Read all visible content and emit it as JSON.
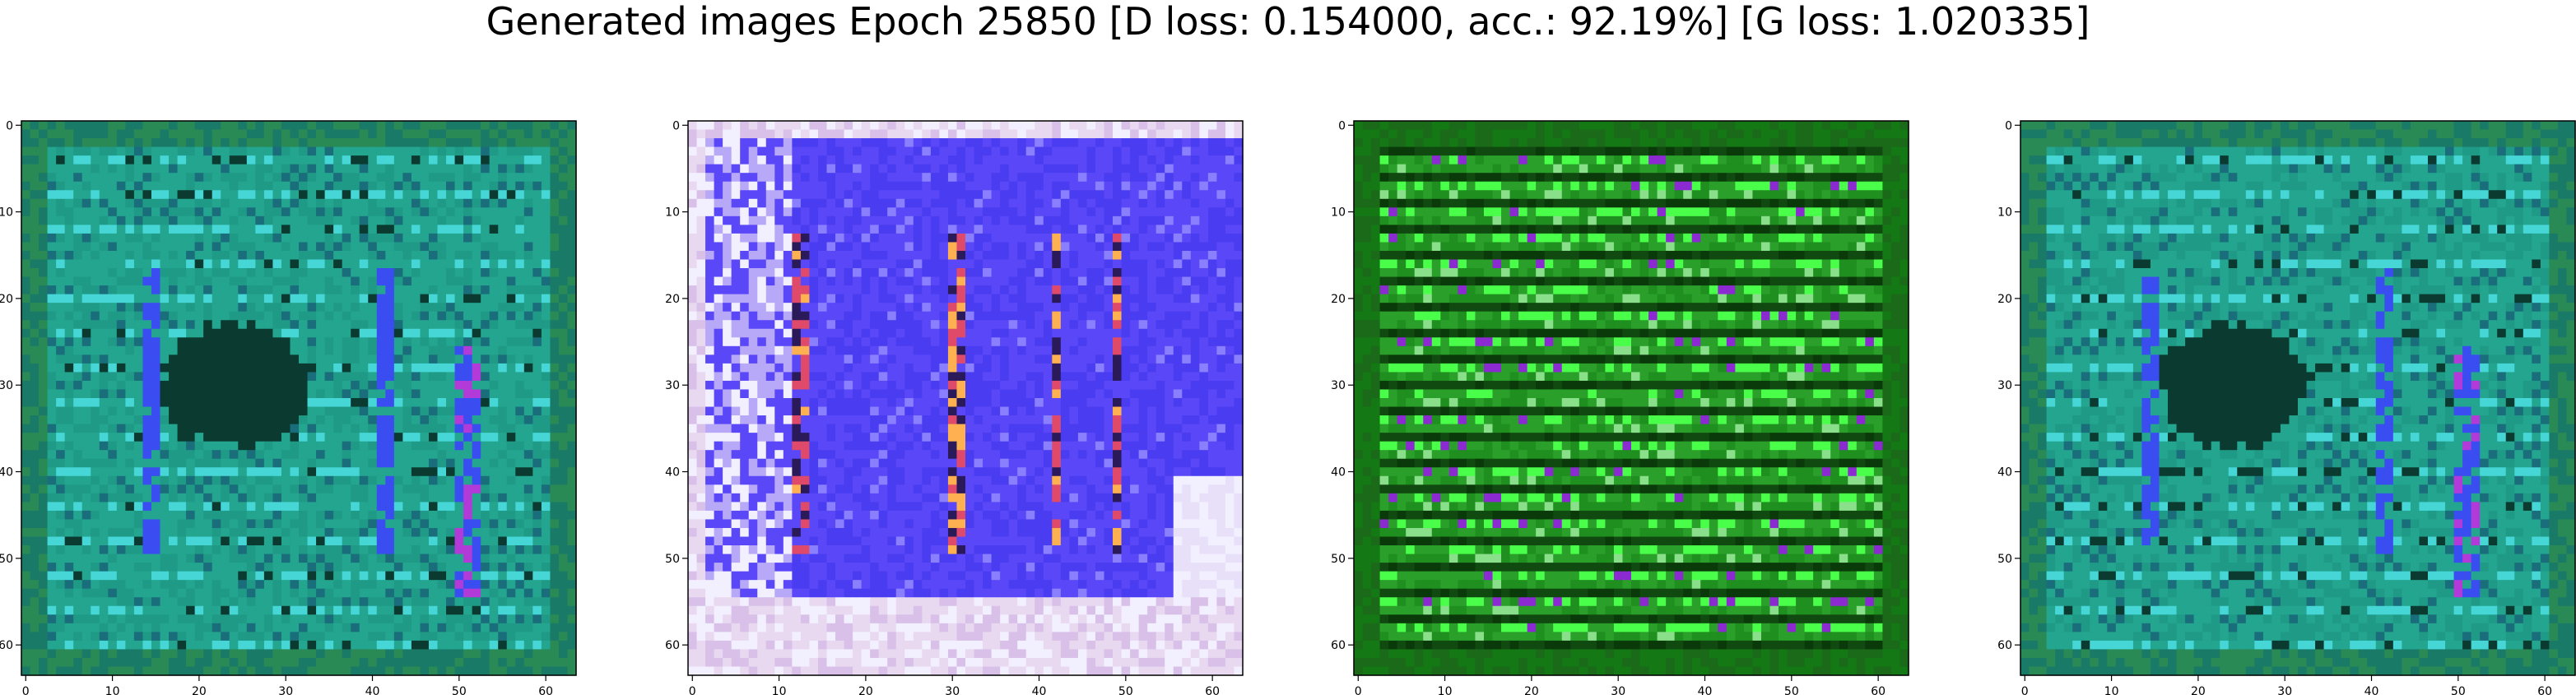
{
  "figure": {
    "title": "Generated images Epoch 25850 [D loss: 0.154000, acc.: 92.19%] [G loss: 1.020335]"
  },
  "chart_data": [
    {
      "type": "heatmap",
      "xlim": [
        0,
        63
      ],
      "ylim": [
        63,
        0
      ],
      "xticks": [
        0,
        10,
        20,
        30,
        40,
        50,
        60
      ],
      "yticks": [
        0,
        10,
        20,
        30,
        40,
        50,
        60
      ],
      "style": "teal-texture",
      "colors": {
        "base": "#1f9a86",
        "dark": "#0b3b30",
        "accent": "#3a4df0",
        "highlight": "#b23ad8",
        "light": "#46d6d6"
      }
    },
    {
      "type": "heatmap",
      "xlim": [
        0,
        63
      ],
      "ylim": [
        63,
        0
      ],
      "xticks": [
        0,
        10,
        20,
        30,
        40,
        50,
        60
      ],
      "yticks": [
        0,
        10,
        20,
        30,
        40,
        50,
        60
      ],
      "style": "blue-white",
      "colors": {
        "base": "#4a3cf0",
        "dark": "#2a1a5a",
        "accent": "#e04a6a",
        "highlight": "#ffb050",
        "light": "#f2f0ff"
      }
    },
    {
      "type": "heatmap",
      "xlim": [
        0,
        63
      ],
      "ylim": [
        63,
        0
      ],
      "xticks": [
        0,
        10,
        20,
        30,
        40,
        50,
        60
      ],
      "yticks": [
        0,
        10,
        20,
        30,
        40,
        50,
        60
      ],
      "style": "green-stripes",
      "colors": {
        "base": "#1f8f1f",
        "dark": "#0a3a0a",
        "accent": "#4aff4a",
        "highlight": "#8a2ad0",
        "light": "#8ae08a"
      }
    },
    {
      "type": "heatmap",
      "xlim": [
        0,
        63
      ],
      "ylim": [
        63,
        0
      ],
      "xticks": [
        0,
        10,
        20,
        30,
        40,
        50,
        60
      ],
      "yticks": [
        0,
        10,
        20,
        30,
        40,
        50,
        60
      ],
      "style": "teal-texture",
      "colors": {
        "base": "#1f9a86",
        "dark": "#0b3b30",
        "accent": "#3a4df0",
        "highlight": "#b23ad8",
        "light": "#46d6d6"
      }
    }
  ]
}
